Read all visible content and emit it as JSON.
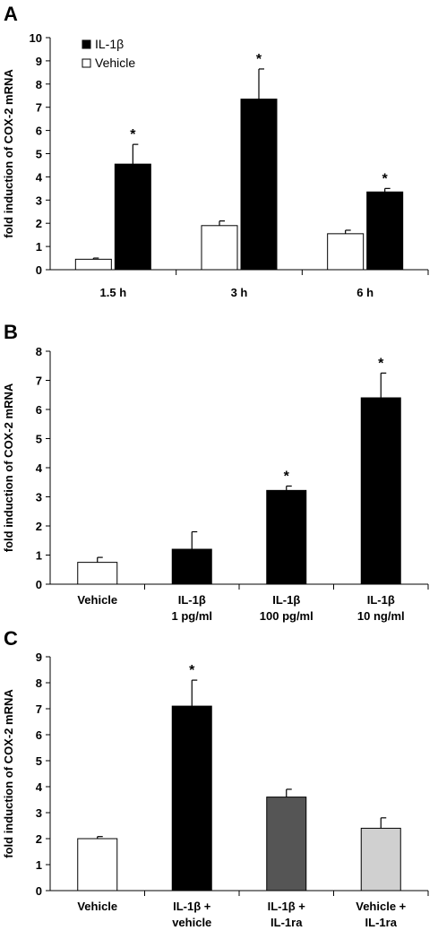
{
  "chart_data": [
    {
      "panel": "A",
      "type": "bar",
      "ylabel": "fold induction of COX-2 mRNA",
      "ylim": [
        0,
        10
      ],
      "yticks": [
        0,
        1,
        2,
        3,
        4,
        5,
        6,
        7,
        8,
        9,
        10
      ],
      "categories": [
        "1.5 h",
        "3 h",
        "6 h"
      ],
      "legend_position": "top-left",
      "series": [
        {
          "name": "Vehicle",
          "color": "#ffffff",
          "values": [
            0.45,
            1.9,
            1.55
          ],
          "errors": [
            0.05,
            0.2,
            0.15
          ],
          "significant": [
            false,
            false,
            false
          ]
        },
        {
          "name": "IL-1β",
          "color": "#000000",
          "values": [
            4.55,
            7.35,
            3.35
          ],
          "errors": [
            0.85,
            1.3,
            0.15
          ],
          "significant": [
            true,
            true,
            true
          ]
        }
      ],
      "significance_marker": "*"
    },
    {
      "panel": "B",
      "type": "bar",
      "ylabel": "fold induction of COX-2 mRNA",
      "ylim": [
        0,
        8
      ],
      "yticks": [
        0,
        1,
        2,
        3,
        4,
        5,
        6,
        7,
        8
      ],
      "categories": [
        {
          "line1": "Vehicle",
          "line2": ""
        },
        {
          "line1": "IL-1β",
          "line2": "1 pg/ml"
        },
        {
          "line1": "IL-1β",
          "line2": "100 pg/ml"
        },
        {
          "line1": "IL-1β",
          "line2": "10 ng/ml"
        }
      ],
      "values": [
        0.75,
        1.2,
        3.22,
        6.4
      ],
      "errors": [
        0.17,
        0.6,
        0.15,
        0.85
      ],
      "colors": [
        "#ffffff",
        "#000000",
        "#000000",
        "#000000"
      ],
      "significant": [
        false,
        false,
        true,
        true
      ],
      "significance_marker": "*"
    },
    {
      "panel": "C",
      "type": "bar",
      "ylabel": "fold induction of COX-2 mRNA",
      "ylim": [
        0,
        9
      ],
      "yticks": [
        0,
        1,
        2,
        3,
        4,
        5,
        6,
        7,
        8,
        9
      ],
      "categories": [
        {
          "line1": "Vehicle",
          "line2": ""
        },
        {
          "line1": "IL-1β +",
          "line2": "vehicle"
        },
        {
          "line1": "IL-1β +",
          "line2": "IL-1ra"
        },
        {
          "line1": "Vehicle +",
          "line2": "IL-1ra"
        }
      ],
      "values": [
        2.0,
        7.1,
        3.6,
        2.4
      ],
      "errors": [
        0.08,
        1.0,
        0.3,
        0.4
      ],
      "colors": [
        "#ffffff",
        "#000000",
        "#555555",
        "#d0d0d0"
      ],
      "significant": [
        false,
        true,
        false,
        false
      ],
      "significance_marker": "*"
    }
  ]
}
